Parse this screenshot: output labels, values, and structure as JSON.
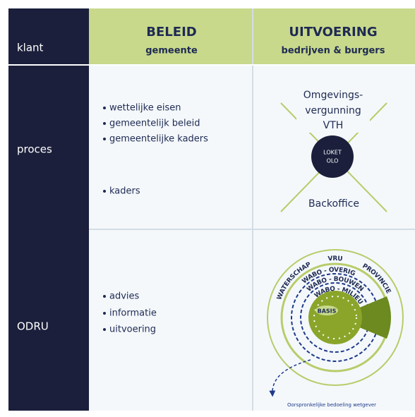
{
  "rows": {
    "klant": "klant",
    "proces": "proces",
    "odru": "ODRU"
  },
  "header": {
    "beleid": {
      "title": "BELEID",
      "subtitle": "gemeente"
    },
    "uitvoering": {
      "title": "UITVOERING",
      "subtitle": "bedrijven & burgers"
    }
  },
  "proces": {
    "beleid": [
      "wettelijke eisen",
      "gemeentelijk beleid",
      "gemeentelijke kaders",
      "kaders"
    ],
    "uitvoering": {
      "top": [
        "Omgevings-",
        "vergunning",
        "VTH"
      ],
      "loket": [
        "LOKET",
        "OLO"
      ],
      "bottom": "Backoffice"
    }
  },
  "odru": {
    "beleid": [
      "advies",
      "informatie",
      "uitvoering"
    ],
    "uitvoering": {
      "rings": [
        "WATERSCHAP",
        "VRU",
        "PROVINCIE",
        "WABO - OVERIG",
        "WABO - BOUWEN",
        "WABO - MILIEU"
      ],
      "center": "BASIS",
      "note": "Oorspronkelijke bedoeling wetgever"
    }
  }
}
